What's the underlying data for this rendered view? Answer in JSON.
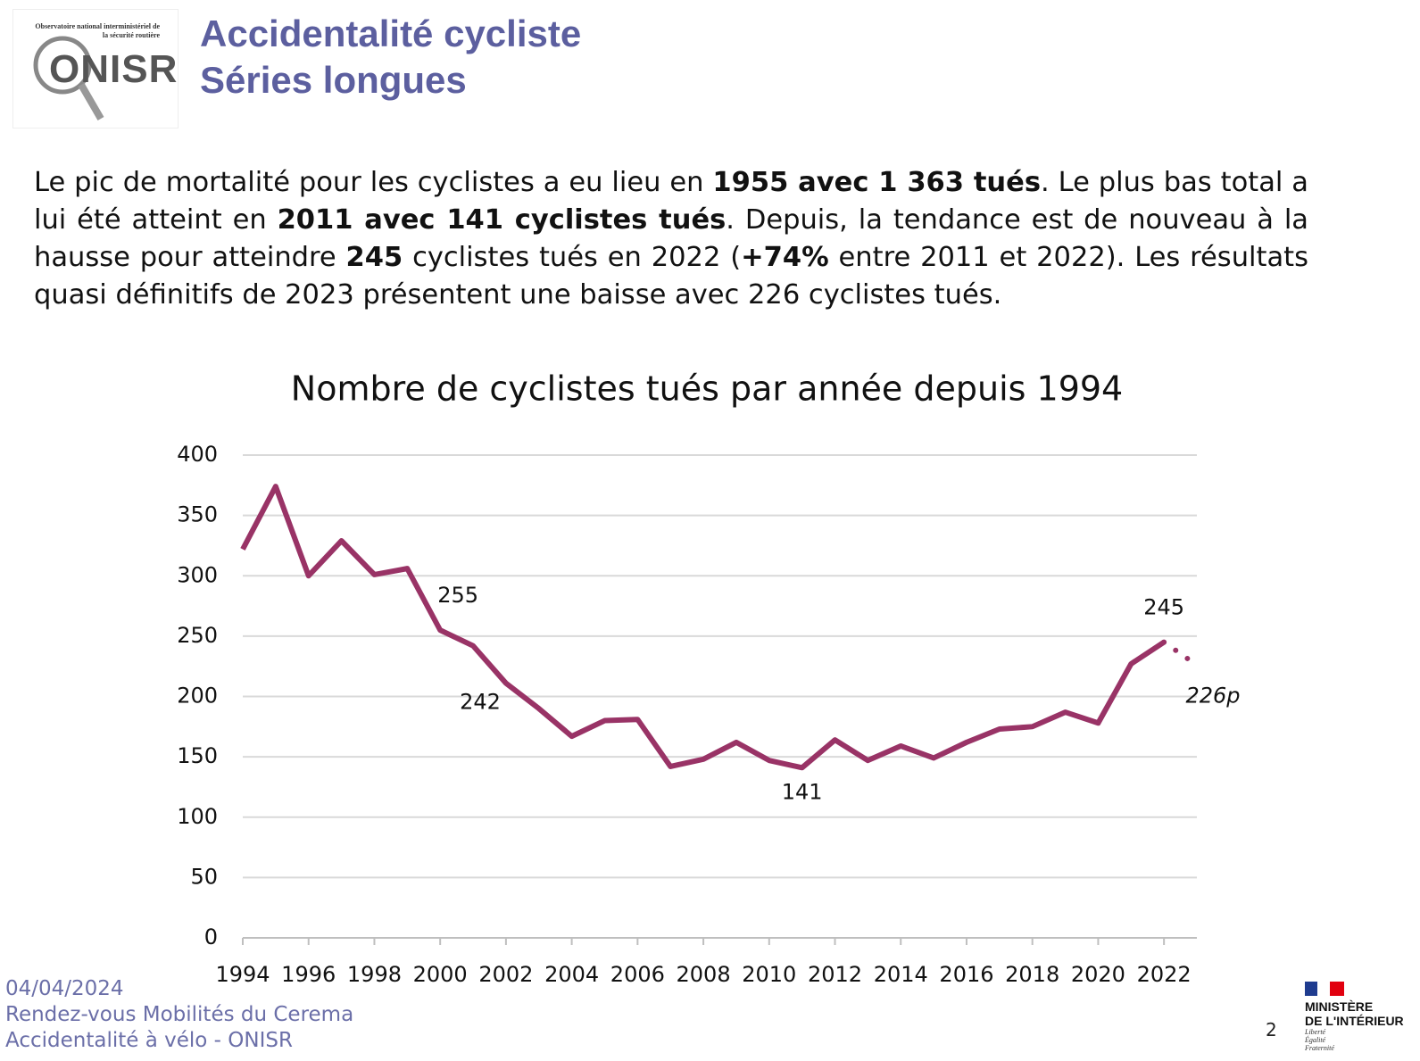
{
  "header": {
    "logo_caption": "Observatoire national interministériel de la sécurité routière",
    "logo_text": "ONISR",
    "title_lines": [
      "Accidentalité cycliste",
      "Séries longues"
    ]
  },
  "paragraph": {
    "segments": [
      {
        "text": "Le pic de mortalité pour les cyclistes a eu lieu en ",
        "bold": false
      },
      {
        "text": "1955 avec 1 363 tués",
        "bold": true
      },
      {
        "text": ". Le plus bas total a lui été atteint en ",
        "bold": false
      },
      {
        "text": "2011 avec 141 cyclistes tués",
        "bold": true
      },
      {
        "text": ". Depuis, la tendance est de nouveau à la hausse pour atteindre ",
        "bold": false
      },
      {
        "text": "245",
        "bold": true
      },
      {
        "text": " cyclistes tués en 2022 (",
        "bold": false
      },
      {
        "text": "+74%",
        "bold": true
      },
      {
        "text": " entre 2011 et 2022). Les résultats quasi définitifs de 2023 présentent une baisse avec 226 cyclistes tués.",
        "bold": false
      }
    ]
  },
  "chart_data": {
    "type": "line",
    "title": "Nombre de cyclistes tués par année depuis 1994",
    "x": [
      1994,
      1995,
      1996,
      1997,
      1998,
      1999,
      2000,
      2001,
      2002,
      2003,
      2004,
      2005,
      2006,
      2007,
      2008,
      2009,
      2010,
      2011,
      2012,
      2013,
      2014,
      2015,
      2016,
      2017,
      2018,
      2019,
      2020,
      2021,
      2022,
      2023
    ],
    "series": [
      {
        "name": "Cyclistes tués",
        "color": "#993366",
        "values": [
          322,
          374,
          300,
          329,
          301,
          306,
          255,
          242,
          211,
          190,
          167,
          180,
          181,
          142,
          148,
          162,
          147,
          141,
          164,
          147,
          159,
          149,
          162,
          173,
          175,
          187,
          178,
          227,
          245,
          226
        ],
        "value_labels": [
          null,
          null,
          null,
          null,
          null,
          null,
          "255",
          "242",
          null,
          null,
          null,
          null,
          null,
          null,
          null,
          null,
          null,
          "141",
          null,
          null,
          null,
          null,
          null,
          null,
          null,
          null,
          null,
          null,
          "245",
          "226p"
        ],
        "dotted_last_segment": true
      }
    ],
    "xlim": [
      1994,
      2023
    ],
    "xticks": [
      1994,
      1996,
      1998,
      2000,
      2002,
      2004,
      2006,
      2008,
      2010,
      2012,
      2014,
      2016,
      2018,
      2020,
      2022
    ],
    "ylim": [
      0,
      400
    ],
    "yticks": [
      0,
      50,
      100,
      150,
      200,
      250,
      300,
      350,
      400
    ],
    "grid": true
  },
  "footer": {
    "lines": [
      "04/04/2024",
      "Rendez-vous Mobilités du Cerema",
      "Accidentalité à vélo - ONISR"
    ],
    "page": "2",
    "ministry": [
      "MINISTÈRE",
      "DE L'INTÉRIEUR"
    ],
    "motto": [
      "Liberté",
      "Égalité",
      "Fraternité"
    ]
  }
}
